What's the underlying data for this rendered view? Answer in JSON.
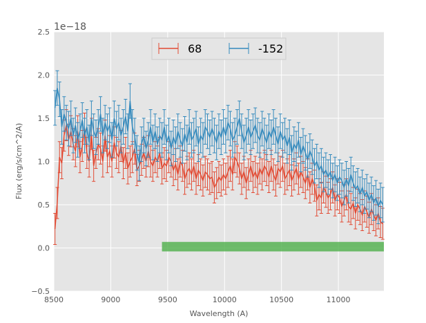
{
  "chart_data": {
    "type": "line",
    "xlabel": "Wavelength (A)",
    "ylabel": "Flux (erg/s/cm^2/A)",
    "offset_label": "1e−18",
    "xlim": [
      8500,
      11400
    ],
    "ylim": [
      -0.5,
      2.5
    ],
    "x_ticks": [
      8500,
      9000,
      9500,
      10000,
      10500,
      11000
    ],
    "x_tick_labels": [
      "8500",
      "9000",
      "9500",
      "10000",
      "10500",
      "11000"
    ],
    "y_ticks": [
      -0.5,
      0.0,
      0.5,
      1.0,
      1.5,
      2.0,
      2.5
    ],
    "y_tick_labels": [
      "−0.5",
      "0.0",
      "0.5",
      "1.0",
      "1.5",
      "2.0",
      "2.5"
    ],
    "grid": true,
    "legend": {
      "position": "top-center",
      "entries": [
        "68",
        "-152"
      ]
    },
    "series": [
      {
        "name": "68",
        "color": "#e24a33",
        "x": [
          8510,
          8530,
          8550,
          8570,
          8590,
          8610,
          8630,
          8650,
          8670,
          8690,
          8710,
          8730,
          8750,
          8770,
          8790,
          8810,
          8830,
          8850,
          8870,
          8890,
          8910,
          8930,
          8950,
          8970,
          8990,
          9010,
          9030,
          9050,
          9070,
          9090,
          9110,
          9130,
          9150,
          9170,
          9190,
          9210,
          9230,
          9250,
          9270,
          9290,
          9310,
          9330,
          9350,
          9370,
          9390,
          9410,
          9430,
          9450,
          9470,
          9490,
          9510,
          9530,
          9550,
          9570,
          9590,
          9610,
          9630,
          9650,
          9670,
          9690,
          9710,
          9730,
          9750,
          9770,
          9790,
          9810,
          9830,
          9850,
          9870,
          9890,
          9910,
          9930,
          9950,
          9970,
          9990,
          10010,
          10030,
          10050,
          10070,
          10090,
          10110,
          10130,
          10150,
          10170,
          10190,
          10210,
          10230,
          10250,
          10270,
          10290,
          10310,
          10330,
          10350,
          10370,
          10390,
          10410,
          10430,
          10450,
          10470,
          10490,
          10510,
          10530,
          10550,
          10570,
          10590,
          10610,
          10630,
          10650,
          10670,
          10690,
          10710,
          10730,
          10750,
          10770,
          10790,
          10810,
          10830,
          10850,
          10870,
          10890,
          10910,
          10930,
          10950,
          10970,
          10990,
          11010,
          11030,
          11050,
          11070,
          11090,
          11110,
          11130,
          11150,
          11170,
          11190,
          11210,
          11230,
          11250,
          11270,
          11290,
          11310,
          11330,
          11350,
          11370,
          11390
        ],
        "y": [
          0.22,
          0.52,
          1.05,
          0.98,
          1.3,
          1.42,
          1.25,
          1.35,
          1.2,
          1.12,
          1.35,
          1.05,
          1.18,
          1.38,
          1.1,
          1.0,
          1.32,
          0.95,
          1.1,
          1.2,
          1.15,
          1.0,
          1.3,
          1.05,
          1.12,
          1.0,
          1.22,
          1.1,
          1.05,
          1.18,
          0.98,
          1.1,
          0.92,
          1.0,
          1.05,
          1.15,
          0.9,
          0.95,
          1.02,
          1.1,
          1.0,
          1.12,
          1.0,
          0.95,
          1.05,
          1.0,
          1.1,
          0.92,
          0.98,
          0.95,
          1.05,
          1.0,
          0.9,
          0.97,
          0.85,
          1.0,
          0.95,
          0.8,
          0.88,
          0.92,
          0.85,
          0.95,
          0.8,
          0.9,
          0.85,
          0.78,
          0.88,
          0.85,
          0.8,
          0.82,
          0.7,
          0.75,
          0.82,
          0.78,
          0.85,
          0.8,
          0.88,
          0.95,
          0.85,
          1.05,
          1.0,
          0.92,
          0.8,
          0.88,
          0.75,
          0.85,
          0.95,
          0.82,
          0.88,
          0.8,
          0.92,
          0.85,
          0.95,
          0.9,
          0.82,
          0.95,
          0.85,
          0.78,
          0.92,
          0.88,
          0.95,
          0.8,
          0.85,
          0.9,
          0.78,
          0.85,
          0.92,
          0.8,
          0.88,
          0.82,
          0.75,
          0.85,
          0.7,
          0.8,
          0.72,
          0.55,
          0.62,
          0.58,
          0.7,
          0.65,
          0.58,
          0.62,
          0.7,
          0.55,
          0.62,
          0.58,
          0.48,
          0.55,
          0.62,
          0.48,
          0.45,
          0.52,
          0.4,
          0.5,
          0.45,
          0.38,
          0.48,
          0.42,
          0.35,
          0.45,
          0.38,
          0.32,
          0.4,
          0.3,
          0.28
        ],
        "yerr": 0.18
      },
      {
        "name": "-152",
        "color": "#348abd",
        "x": [
          8510,
          8530,
          8550,
          8570,
          8590,
          8610,
          8630,
          8650,
          8670,
          8690,
          8710,
          8730,
          8750,
          8770,
          8790,
          8810,
          8830,
          8850,
          8870,
          8890,
          8910,
          8930,
          8950,
          8970,
          8990,
          9010,
          9030,
          9050,
          9070,
          9090,
          9110,
          9130,
          9150,
          9170,
          9190,
          9210,
          9230,
          9250,
          9270,
          9290,
          9310,
          9330,
          9350,
          9370,
          9390,
          9410,
          9430,
          9450,
          9470,
          9490,
          9510,
          9530,
          9550,
          9570,
          9590,
          9610,
          9630,
          9650,
          9670,
          9690,
          9710,
          9730,
          9750,
          9770,
          9790,
          9810,
          9830,
          9850,
          9870,
          9890,
          9910,
          9930,
          9950,
          9970,
          9990,
          10010,
          10030,
          10050,
          10070,
          10090,
          10110,
          10130,
          10150,
          10170,
          10190,
          10210,
          10230,
          10250,
          10270,
          10290,
          10310,
          10330,
          10350,
          10370,
          10390,
          10410,
          10430,
          10450,
          10470,
          10490,
          10510,
          10530,
          10550,
          10570,
          10590,
          10610,
          10630,
          10650,
          10670,
          10690,
          10710,
          10730,
          10750,
          10770,
          10790,
          10810,
          10830,
          10850,
          10870,
          10890,
          10910,
          10930,
          10950,
          10970,
          10990,
          11010,
          11030,
          11050,
          11070,
          11090,
          11110,
          11130,
          11150,
          11170,
          11190,
          11210,
          11230,
          11250,
          11270,
          11290,
          11310,
          11330,
          11350,
          11370,
          11390
        ],
        "y": [
          1.62,
          1.85,
          1.72,
          1.4,
          1.55,
          1.45,
          1.38,
          1.5,
          1.3,
          1.42,
          1.25,
          1.35,
          1.48,
          1.3,
          1.4,
          1.22,
          1.5,
          1.35,
          1.28,
          1.4,
          1.55,
          1.3,
          1.45,
          1.35,
          1.42,
          1.25,
          1.5,
          1.38,
          1.45,
          1.3,
          1.4,
          1.52,
          1.35,
          1.7,
          1.4,
          1.3,
          1.1,
          0.98,
          1.2,
          1.3,
          1.15,
          1.25,
          1.4,
          1.22,
          1.35,
          1.2,
          1.3,
          1.25,
          1.4,
          1.22,
          1.3,
          1.15,
          1.28,
          1.2,
          1.35,
          1.25,
          1.18,
          1.32,
          1.22,
          1.4,
          1.25,
          1.3,
          1.38,
          1.2,
          1.3,
          1.25,
          1.4,
          1.35,
          1.28,
          1.38,
          1.3,
          1.22,
          1.35,
          1.28,
          1.4,
          1.3,
          1.45,
          1.38,
          1.25,
          1.3,
          1.4,
          1.5,
          1.35,
          1.22,
          1.3,
          1.4,
          1.28,
          1.35,
          1.42,
          1.3,
          1.25,
          1.38,
          1.3,
          1.22,
          1.35,
          1.28,
          1.4,
          1.3,
          1.2,
          1.35,
          1.25,
          1.3,
          1.18,
          1.28,
          1.1,
          1.2,
          1.15,
          1.25,
          1.08,
          1.18,
          1.1,
          1.02,
          1.12,
          1.05,
          0.95,
          1.0,
          0.9,
          0.95,
          0.85,
          0.9,
          0.82,
          0.88,
          0.78,
          0.85,
          0.75,
          0.82,
          0.78,
          0.7,
          0.8,
          0.72,
          0.85,
          0.75,
          0.68,
          0.72,
          0.62,
          0.7,
          0.6,
          0.65,
          0.55,
          0.62,
          0.52,
          0.58,
          0.48,
          0.55,
          0.5
        ],
        "yerr": 0.2
      }
    ],
    "span": {
      "label": "green-band",
      "x_start": 9450,
      "x_end": 11400,
      "y_start": -0.04,
      "y_end": 0.07,
      "color": "#4daf4a"
    }
  }
}
